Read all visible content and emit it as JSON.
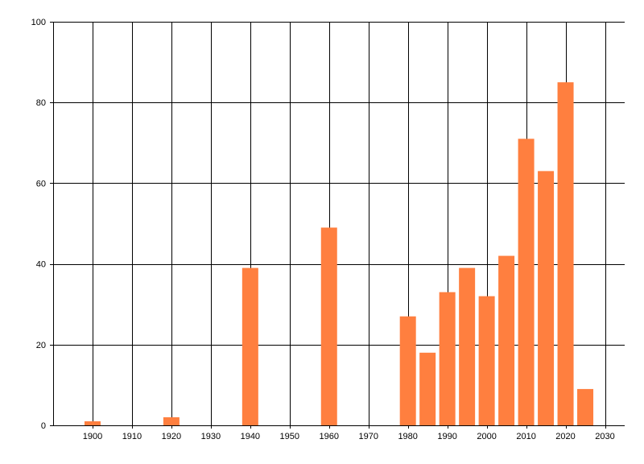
{
  "chart_data": {
    "type": "bar",
    "title": "",
    "xlabel": "",
    "ylabel": "",
    "x": [
      1900,
      1920,
      1940,
      1960,
      1980,
      1985,
      1990,
      1995,
      2000,
      2005,
      2010,
      2015,
      2020,
      2025
    ],
    "values": [
      1,
      2,
      39,
      49,
      27,
      18,
      33,
      39,
      32,
      42,
      71,
      63,
      85,
      9
    ],
    "xlim": [
      1890,
      2035
    ],
    "ylim": [
      0,
      100
    ],
    "x_ticks": [
      "1900",
      "1910",
      "1920",
      "1930",
      "1940",
      "1950",
      "1960",
      "1970",
      "1980",
      "1990",
      "2000",
      "2010",
      "2020",
      "2030"
    ],
    "y_ticks": [
      "0",
      "20",
      "40",
      "60",
      "80",
      "100"
    ],
    "grid": true,
    "legend": "none",
    "bar_color": "#FF7F3F",
    "grid_color": "#000000"
  }
}
